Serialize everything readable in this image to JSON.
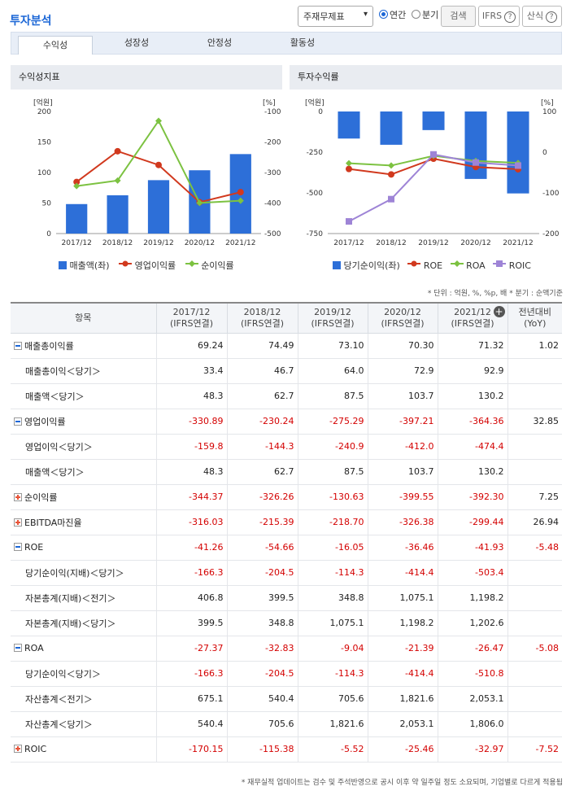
{
  "title": "투자분석",
  "controls": {
    "statement": "주재무제표",
    "annual": "연간",
    "quarter": "분기",
    "search": "검색",
    "ifrs": "IFRS",
    "formula": "산식"
  },
  "tabs": [
    "수익성",
    "성장성",
    "안정성",
    "활동성"
  ],
  "panels": {
    "left": "수익성지표",
    "right": "투자수익률"
  },
  "unit_left": "[억원]",
  "unit_right": "[%]",
  "note": "* 단위 : 억원, %, %p, 배   * 분기 : 순액기준",
  "footer": "* 재무실적 업데이트는 검수 및 주석반영으로 공시 이후 약 일주일 정도 소요되며, 기업별로 다르게 적용됩",
  "colors": {
    "bar": "#2d6fd8",
    "red": "#d1391e",
    "green": "#7cc241",
    "purple": "#9e84d6"
  },
  "chart_data": [
    {
      "type": "bar",
      "title": "수익성지표",
      "categories": [
        "2017/12",
        "2018/12",
        "2019/12",
        "2020/12",
        "2021/12"
      ],
      "ylabel": "[억원]",
      "y2label": "[%]",
      "ylim": [
        0,
        200
      ],
      "yticks": [
        0,
        50,
        100,
        150,
        200
      ],
      "y2lim": [
        -500,
        -100
      ],
      "y2ticks": [
        "-100",
        "-200",
        "-300",
        "-400",
        "-500"
      ],
      "series": [
        {
          "name": "매출액(좌)",
          "axis": "left",
          "kind": "bar",
          "values": [
            48.3,
            62.7,
            87.5,
            103.7,
            130.2
          ]
        },
        {
          "name": "영업이익률",
          "axis": "right",
          "kind": "line",
          "values": [
            -330.89,
            -230.24,
            -275.29,
            -397.21,
            -364.36
          ]
        },
        {
          "name": "순이익률",
          "axis": "right",
          "kind": "line",
          "values": [
            -344.37,
            -326.26,
            -130.63,
            -399.55,
            -392.3
          ]
        }
      ]
    },
    {
      "type": "bar",
      "title": "투자수익률",
      "categories": [
        "2017/12",
        "2018/12",
        "2019/12",
        "2020/12",
        "2021/12"
      ],
      "ylabel": "[억원]",
      "y2label": "[%]",
      "ylim": [
        -750,
        0
      ],
      "yticks": [
        0,
        -250,
        -500,
        -750
      ],
      "y2lim": [
        -200,
        100
      ],
      "y2ticks": [
        "100",
        "0",
        "-100",
        "-200"
      ],
      "series": [
        {
          "name": "당기순이익(좌)",
          "axis": "left",
          "kind": "bar",
          "values": [
            -166.3,
            -204.5,
            -114.3,
            -414.4,
            -503.4
          ]
        },
        {
          "name": "ROE",
          "axis": "right",
          "kind": "line",
          "values": [
            -41.26,
            -54.66,
            -16.05,
            -36.46,
            -41.93
          ]
        },
        {
          "name": "ROA",
          "axis": "right",
          "kind": "line",
          "values": [
            -27.37,
            -32.83,
            -9.04,
            -21.39,
            -26.47
          ]
        },
        {
          "name": "ROIC",
          "axis": "right",
          "kind": "line",
          "values": [
            -170.15,
            -115.38,
            -5.52,
            -25.46,
            -32.97
          ]
        }
      ]
    }
  ],
  "table": {
    "headers": [
      {
        "top": "항목",
        "bot": ""
      },
      {
        "top": "2017/12",
        "bot": "(IFRS연결)"
      },
      {
        "top": "2018/12",
        "bot": "(IFRS연결)"
      },
      {
        "top": "2019/12",
        "bot": "(IFRS연결)"
      },
      {
        "top": "2020/12",
        "bot": "(IFRS연결)"
      },
      {
        "top": "2021/12",
        "bot": "(IFRS연결)"
      },
      {
        "top": "전년대비",
        "bot": "(YoY)"
      }
    ],
    "rows": [
      {
        "label": "매출총이익률",
        "level": 0,
        "toggle": "minus",
        "values": [
          "69.24",
          "74.49",
          "73.10",
          "70.30",
          "71.32"
        ],
        "yoy": "1.02"
      },
      {
        "label": "매출총이익＜당기＞",
        "level": 1,
        "values": [
          "33.4",
          "46.7",
          "64.0",
          "72.9",
          "92.9"
        ],
        "yoy": ""
      },
      {
        "label": "매출액＜당기＞",
        "level": 1,
        "values": [
          "48.3",
          "62.7",
          "87.5",
          "103.7",
          "130.2"
        ],
        "yoy": ""
      },
      {
        "label": "영업이익률",
        "level": 0,
        "toggle": "minus",
        "values": [
          "-330.89",
          "-230.24",
          "-275.29",
          "-397.21",
          "-364.36"
        ],
        "yoy": "32.85"
      },
      {
        "label": "영업이익＜당기＞",
        "level": 1,
        "values": [
          "-159.8",
          "-144.3",
          "-240.9",
          "-412.0",
          "-474.4"
        ],
        "yoy": ""
      },
      {
        "label": "매출액＜당기＞",
        "level": 1,
        "values": [
          "48.3",
          "62.7",
          "87.5",
          "103.7",
          "130.2"
        ],
        "yoy": ""
      },
      {
        "label": "순이익률",
        "level": 0,
        "toggle": "plus",
        "values": [
          "-344.37",
          "-326.26",
          "-130.63",
          "-399.55",
          "-392.30"
        ],
        "yoy": "7.25"
      },
      {
        "label": "EBITDA마진율",
        "level": 0,
        "toggle": "plus",
        "values": [
          "-316.03",
          "-215.39",
          "-218.70",
          "-326.38",
          "-299.44"
        ],
        "yoy": "26.94"
      },
      {
        "label": "ROE",
        "level": 0,
        "toggle": "minus",
        "values": [
          "-41.26",
          "-54.66",
          "-16.05",
          "-36.46",
          "-41.93"
        ],
        "yoy": "-5.48"
      },
      {
        "label": "당기순이익(지배)＜당기＞",
        "level": 1,
        "values": [
          "-166.3",
          "-204.5",
          "-114.3",
          "-414.4",
          "-503.4"
        ],
        "yoy": ""
      },
      {
        "label": "자본총계(지배)＜전기＞",
        "level": 1,
        "values": [
          "406.8",
          "399.5",
          "348.8",
          "1,075.1",
          "1,198.2"
        ],
        "yoy": ""
      },
      {
        "label": "자본총계(지배)＜당기＞",
        "level": 1,
        "values": [
          "399.5",
          "348.8",
          "1,075.1",
          "1,198.2",
          "1,202.6"
        ],
        "yoy": ""
      },
      {
        "label": "ROA",
        "level": 0,
        "toggle": "minus",
        "values": [
          "-27.37",
          "-32.83",
          "-9.04",
          "-21.39",
          "-26.47"
        ],
        "yoy": "-5.08"
      },
      {
        "label": "당기순이익＜당기＞",
        "level": 1,
        "values": [
          "-166.3",
          "-204.5",
          "-114.3",
          "-414.4",
          "-510.8"
        ],
        "yoy": ""
      },
      {
        "label": "자산총계＜전기＞",
        "level": 1,
        "values": [
          "675.1",
          "540.4",
          "705.6",
          "1,821.6",
          "2,053.1"
        ],
        "yoy": ""
      },
      {
        "label": "자산총계＜당기＞",
        "level": 1,
        "values": [
          "540.4",
          "705.6",
          "1,821.6",
          "2,053.1",
          "1,806.0"
        ],
        "yoy": ""
      },
      {
        "label": "ROIC",
        "level": 0,
        "toggle": "plus",
        "values": [
          "-170.15",
          "-115.38",
          "-5.52",
          "-25.46",
          "-32.97"
        ],
        "yoy": "-7.52"
      }
    ]
  }
}
